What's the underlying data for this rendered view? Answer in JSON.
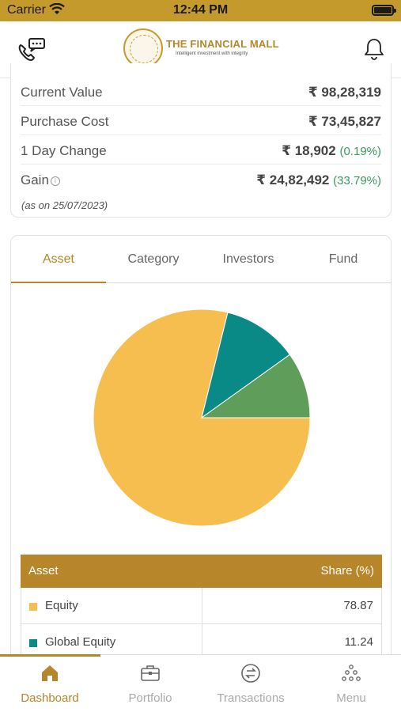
{
  "status_bar": {
    "carrier": "Carrier",
    "time": "12:44 PM"
  },
  "header": {
    "brand": "THE FINANCIAL MALL",
    "tagline": "Intelligent investment with integrity",
    "icons": [
      "phone-chat-icon",
      "bell-icon"
    ]
  },
  "summary": {
    "current_value": {
      "label": "Current Value",
      "value": "₹ 98,28,319"
    },
    "purchase_cost": {
      "label": "Purchase Cost",
      "value": "₹ 73,45,827"
    },
    "day_change": {
      "label": "1 Day Change",
      "value": "₹ 18,902",
      "pct": "(0.19%)"
    },
    "gain": {
      "label": "Gain",
      "value": "₹ 24,82,492",
      "pct": "(33.79%)"
    },
    "as_on": "(as on 25/07/2023)",
    "positive_color": "#3a9a5c"
  },
  "tabs": [
    {
      "label": "Asset",
      "active": true
    },
    {
      "label": "Category",
      "active": false
    },
    {
      "label": "Investors",
      "active": false
    },
    {
      "label": "Fund",
      "active": false
    }
  ],
  "chart_data": {
    "type": "pie",
    "slices": [
      {
        "name": "Equity",
        "value": 78.87,
        "color": "#f6be4f"
      },
      {
        "name": "Global Equity",
        "value": 11.24,
        "color": "#0a8a86"
      },
      {
        "name": "",
        "value": 9.89,
        "color": "#5f9e5a"
      }
    ]
  },
  "asset_table": {
    "headers": [
      "Asset",
      "Share (%)"
    ],
    "rows": [
      {
        "name": "Equity",
        "share": "78.87",
        "color": "#f6be4f"
      },
      {
        "name": "Global Equity",
        "share": "11.24",
        "color": "#0a8a86"
      }
    ]
  },
  "bottom_nav": [
    {
      "label": "Dashboard",
      "icon": "home-icon",
      "active": true
    },
    {
      "label": "Portfolio",
      "icon": "briefcase-icon",
      "active": false
    },
    {
      "label": "Transactions",
      "icon": "transfer-icon",
      "active": false
    },
    {
      "label": "Menu",
      "icon": "menu-dots-icon",
      "active": false
    }
  ],
  "accent_color": "#b8862a"
}
